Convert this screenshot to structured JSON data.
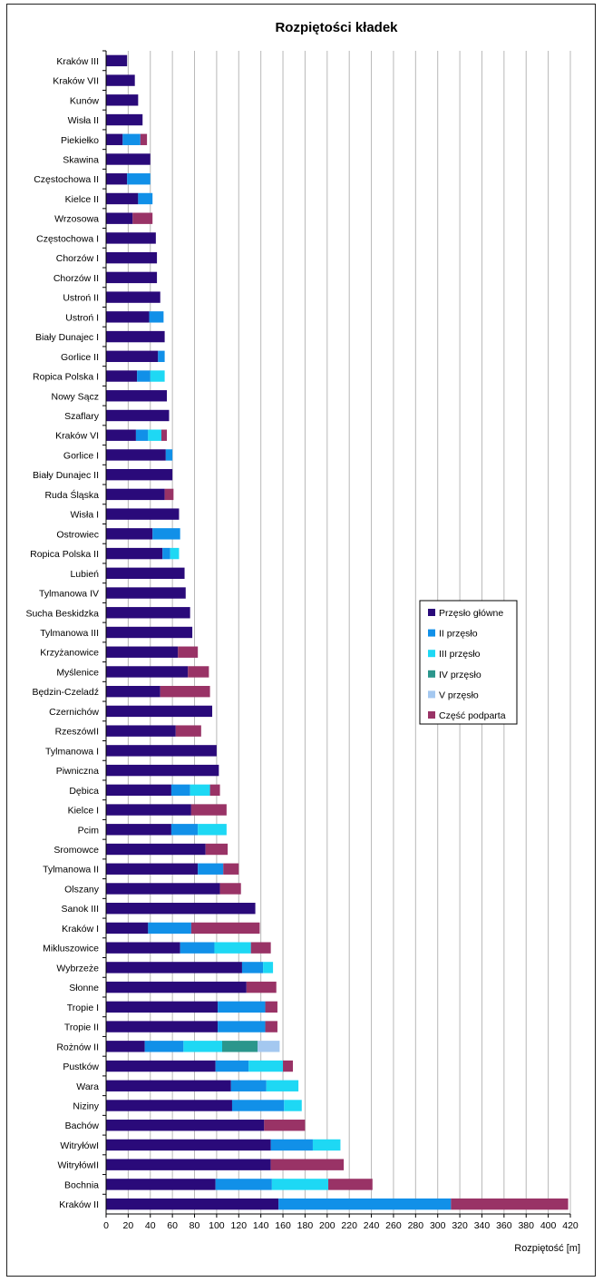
{
  "chart_data": {
    "type": "bar",
    "orientation": "horizontal",
    "stacked": true,
    "title": "Rozpiętości kładek",
    "xlabel": "Rozpiętość [m]",
    "ylabel": "",
    "xlim": [
      0,
      420
    ],
    "xticks": [
      0,
      20,
      40,
      60,
      80,
      100,
      120,
      140,
      160,
      180,
      200,
      220,
      240,
      260,
      280,
      300,
      320,
      340,
      360,
      380,
      400,
      420
    ],
    "grid": "vertical",
    "legend_position": "right",
    "categories": [
      "Kraków III",
      "Kraków VII",
      "Kunów",
      "Wisła II",
      "Piekiełko",
      "Skawina",
      "Częstochowa II",
      "Kielce II",
      "Wrzosowa",
      "Częstochowa I",
      "Chorzów I",
      "Chorzów II",
      "Ustroń II",
      "Ustroń I",
      "Biały Dunajec I",
      "Gorlice II",
      "Ropica Polska I",
      "Nowy Sącz",
      "Szaflary",
      "Kraków VI",
      "Gorlice I",
      "Biały Dunajec II",
      "Ruda Śląska",
      "Wisła I",
      "Ostrowiec",
      "Ropica Polska II",
      "Lubień",
      "Tylmanowa IV",
      "Sucha Beskidzka",
      "Tylmanowa III",
      "Krzyżanowice",
      "Myślenice",
      "Będzin-Czeladź",
      "Czernichów",
      "Rzeszów II",
      "Tylmanowa I",
      "Piwniczna",
      "Dębica",
      "Kielce I",
      "Pcim",
      "Sromowce",
      "Tylmanowa II",
      "Olszany",
      "Sanok III",
      "Kraków I",
      "Mikluszowice",
      "Wybrzeże",
      "Słonne",
      "Tropie I",
      "Tropie II",
      "Rożnów II",
      "Pustków",
      "Wara",
      "Niziny",
      "Bachów",
      "Witryłów I",
      "Witryłów II",
      "Bochnia",
      "Kraków II"
    ],
    "category_labels": [
      "Kraków III",
      "Kraków VII",
      "Kunów",
      "Wisła II",
      "Piekiełko",
      "Skawina",
      "Częstochowa II",
      "Kielce II",
      "Wrzosowa",
      "Częstochowa I",
      "Chorzów I",
      "Chorzów II",
      "Ustroń II",
      "Ustroń I",
      "Biały Dunajec I",
      "Gorlice II",
      "Ropica Polska I",
      "Nowy Sącz",
      "Szaflary",
      "Kraków VI",
      "Gorlice I",
      "Biały Dunajec II",
      "Ruda Śląska",
      "Wisła I",
      "Ostrowiec",
      "Ropica Polska II",
      "Lubień",
      "Tylmanowa IV",
      "Sucha Beskidzka",
      "Tylmanowa III",
      "Krzyżanowice",
      "Myślenice",
      "Będzin-Czeladź",
      "Czernichów",
      "RzeszówII",
      "Tylmanowa I",
      "Piwniczna",
      "Dębica",
      "Kielce I",
      "Pcim",
      "Sromowce",
      "Tylmanowa II",
      "Olszany",
      "Sanok III",
      "Kraków I",
      "Mikluszowice",
      "Wybrzeże",
      "Słonne",
      "Tropie I",
      "Tropie II",
      "Rożnów II",
      "Pustków",
      "Wara",
      "Niziny",
      "Bachów",
      "WitryłówI",
      "WitryłówII",
      "Bochnia",
      "Kraków II"
    ],
    "series": [
      {
        "name": "Przęsło główne",
        "color": "#2a0a7a",
        "values": [
          19,
          26,
          29,
          33,
          15,
          40,
          19,
          29,
          24,
          45,
          46,
          46,
          49,
          39,
          53,
          47,
          28,
          55,
          57,
          27,
          54,
          60,
          53,
          66,
          42,
          51,
          71,
          72,
          76,
          78,
          65,
          74,
          49,
          96,
          63,
          100,
          102,
          59,
          77,
          59,
          90,
          83,
          103,
          135,
          38,
          67,
          123,
          127,
          101,
          101,
          35,
          99,
          113,
          114,
          143,
          149,
          149,
          99,
          156
        ]
      },
      {
        "name": "II przęsło",
        "color": "#1190e8",
        "values": [
          0,
          0,
          0,
          0,
          16,
          0,
          21,
          13,
          0,
          0,
          0,
          0,
          0,
          13,
          0,
          6,
          12,
          0,
          0,
          11,
          6,
          0,
          0,
          0,
          25,
          7,
          0,
          0,
          0,
          0,
          0,
          0,
          0,
          0,
          0,
          0,
          0,
          17,
          0,
          24,
          0,
          23,
          0,
          0,
          39,
          31,
          19,
          0,
          43,
          43,
          35,
          30,
          32,
          47,
          0,
          38,
          0,
          51,
          156
        ]
      },
      {
        "name": "III przęsło",
        "color": "#1ed8f4",
        "values": [
          0,
          0,
          0,
          0,
          0,
          0,
          0,
          0,
          0,
          0,
          0,
          0,
          0,
          0,
          0,
          0,
          13,
          0,
          0,
          12,
          0,
          0,
          0,
          0,
          0,
          8,
          0,
          0,
          0,
          0,
          0,
          0,
          0,
          0,
          0,
          0,
          0,
          18,
          0,
          26,
          0,
          0,
          0,
          0,
          0,
          33,
          9,
          0,
          0,
          0,
          35,
          31,
          29,
          16,
          0,
          25,
          0,
          51,
          0
        ]
      },
      {
        "name": "IV przęsło",
        "color": "#2b968c",
        "values": [
          0,
          0,
          0,
          0,
          0,
          0,
          0,
          0,
          0,
          0,
          0,
          0,
          0,
          0,
          0,
          0,
          0,
          0,
          0,
          0,
          0,
          0,
          0,
          0,
          0,
          0,
          0,
          0,
          0,
          0,
          0,
          0,
          0,
          0,
          0,
          0,
          0,
          0,
          0,
          0,
          0,
          0,
          0,
          0,
          0,
          0,
          0,
          0,
          0,
          0,
          32,
          0,
          0,
          0,
          0,
          0,
          0,
          0,
          0
        ]
      },
      {
        "name": "V przęsło",
        "color": "#a4c8f0",
        "values": [
          0,
          0,
          0,
          0,
          0,
          0,
          0,
          0,
          0,
          0,
          0,
          0,
          0,
          0,
          0,
          0,
          0,
          0,
          0,
          0,
          0,
          0,
          0,
          0,
          0,
          0,
          0,
          0,
          0,
          0,
          0,
          0,
          0,
          0,
          0,
          0,
          0,
          0,
          0,
          0,
          0,
          0,
          0,
          0,
          0,
          0,
          0,
          0,
          0,
          0,
          20,
          0,
          0,
          0,
          0,
          0,
          0,
          0,
          0
        ]
      },
      {
        "name": "Część podparta",
        "color": "#993366",
        "values": [
          0,
          0,
          0,
          0,
          6,
          0,
          0,
          0,
          18,
          0,
          0,
          0,
          0,
          0,
          0,
          0,
          0,
          0,
          0,
          5,
          0,
          0,
          8,
          0,
          0,
          0,
          0,
          0,
          0,
          0,
          18,
          19,
          45,
          0,
          23,
          0,
          0,
          9,
          32,
          0,
          20,
          14,
          19,
          0,
          62,
          18,
          0,
          27,
          11,
          11,
          0,
          9,
          0,
          0,
          37,
          0,
          66,
          40,
          106
        ]
      }
    ]
  }
}
